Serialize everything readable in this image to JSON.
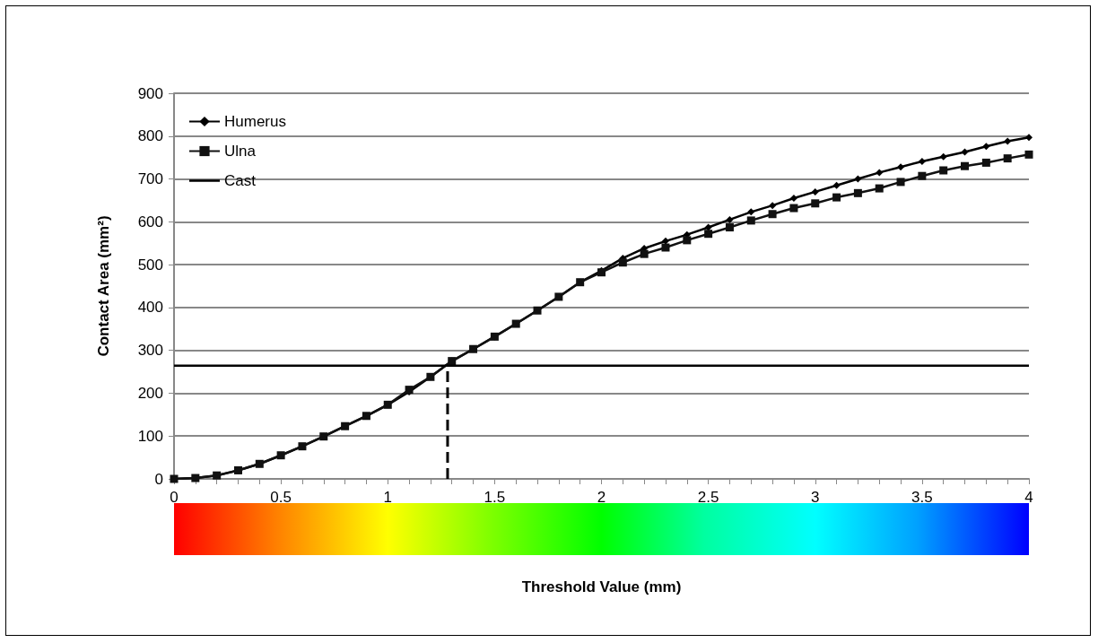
{
  "chart_data": {
    "type": "line",
    "xlabel": "Threshold Value (mm)",
    "ylabel": "Contact Area (mm²)",
    "xlim": [
      0,
      4
    ],
    "ylim": [
      0,
      900
    ],
    "xticks": [
      0,
      {
        "value": 0.1,
        "label": null
      },
      {
        "value": 0.2,
        "label": null
      },
      {
        "value": 0.3,
        "label": null
      },
      {
        "value": 0.4,
        "label": null
      },
      0.5,
      {
        "value": 0.6,
        "label": null
      },
      {
        "value": 0.7,
        "label": null
      },
      {
        "value": 0.8,
        "label": null
      },
      {
        "value": 0.9,
        "label": null
      },
      1,
      {
        "value": 1.1,
        "label": null
      },
      {
        "value": 1.2,
        "label": null
      },
      {
        "value": 1.3,
        "label": null
      },
      {
        "value": 1.4,
        "label": null
      },
      1.5,
      {
        "value": 1.6,
        "label": null
      },
      {
        "value": 1.7,
        "label": null
      },
      {
        "value": 1.8,
        "label": null
      },
      {
        "value": 1.9,
        "label": null
      },
      2,
      {
        "value": 2.1,
        "label": null
      },
      {
        "value": 2.2,
        "label": null
      },
      {
        "value": 2.3,
        "label": null
      },
      {
        "value": 2.4,
        "label": null
      },
      2.5,
      {
        "value": 2.6,
        "label": null
      },
      {
        "value": 2.7,
        "label": null
      },
      {
        "value": 2.8,
        "label": null
      },
      {
        "value": 2.9,
        "label": null
      },
      3,
      {
        "value": 3.1,
        "label": null
      },
      {
        "value": 3.2,
        "label": null
      },
      {
        "value": 3.3,
        "label": null
      },
      {
        "value": 3.4,
        "label": null
      },
      3.5,
      {
        "value": 3.6,
        "label": null
      },
      {
        "value": 3.7,
        "label": null
      },
      {
        "value": 3.8,
        "label": null
      },
      {
        "value": 3.9,
        "label": null
      },
      4
    ],
    "yticks": [
      0,
      100,
      200,
      300,
      400,
      500,
      600,
      700,
      800,
      900
    ],
    "grid": "y",
    "legend": "top left",
    "x": [
      0,
      0.1,
      0.2,
      0.3,
      0.4,
      0.5,
      0.6,
      0.7,
      0.8,
      0.9,
      1,
      1.1,
      1.2,
      1.3,
      1.4,
      1.5,
      1.6,
      1.7,
      1.8,
      1.9,
      2,
      2.1,
      2.2,
      2.3,
      2.4,
      2.5,
      2.6,
      2.7,
      2.8,
      2.9,
      3,
      3.1,
      3.2,
      3.3,
      3.4,
      3.5,
      3.6,
      3.7,
      3.8,
      3.9,
      4
    ],
    "series": [
      {
        "name": "Humerus",
        "color": "#000000",
        "marker": "diamond",
        "values": [
          0,
          2,
          8,
          20,
          35,
          55,
          76,
          99,
          123,
          147,
          173,
          203,
          238,
          275,
          303,
          332,
          362,
          393,
          425,
          459,
          486,
          515,
          538,
          555,
          570,
          587,
          605,
          623,
          638,
          655,
          670,
          685,
          700,
          715,
          728,
          741,
          752,
          763,
          776,
          788,
          797
        ]
      },
      {
        "name": "Ulna",
        "color": "#111111",
        "marker": "square",
        "values": [
          0,
          2,
          8,
          20,
          35,
          55,
          76,
          99,
          123,
          147,
          173,
          208,
          238,
          275,
          303,
          332,
          362,
          393,
          425,
          459,
          482,
          505,
          525,
          540,
          557,
          572,
          587,
          603,
          618,
          632,
          643,
          657,
          667,
          678,
          693,
          707,
          720,
          730,
          738,
          748,
          757
        ]
      },
      {
        "name": "Cast",
        "color": "#000000",
        "marker": "none",
        "x": [
          0,
          4
        ],
        "values": [
          264,
          264
        ]
      },
      {
        "color": "#000000",
        "marker": "none",
        "line_style": "dashed",
        "x": [
          1.28,
          1.28
        ],
        "values": [
          0,
          264
        ]
      }
    ]
  }
}
